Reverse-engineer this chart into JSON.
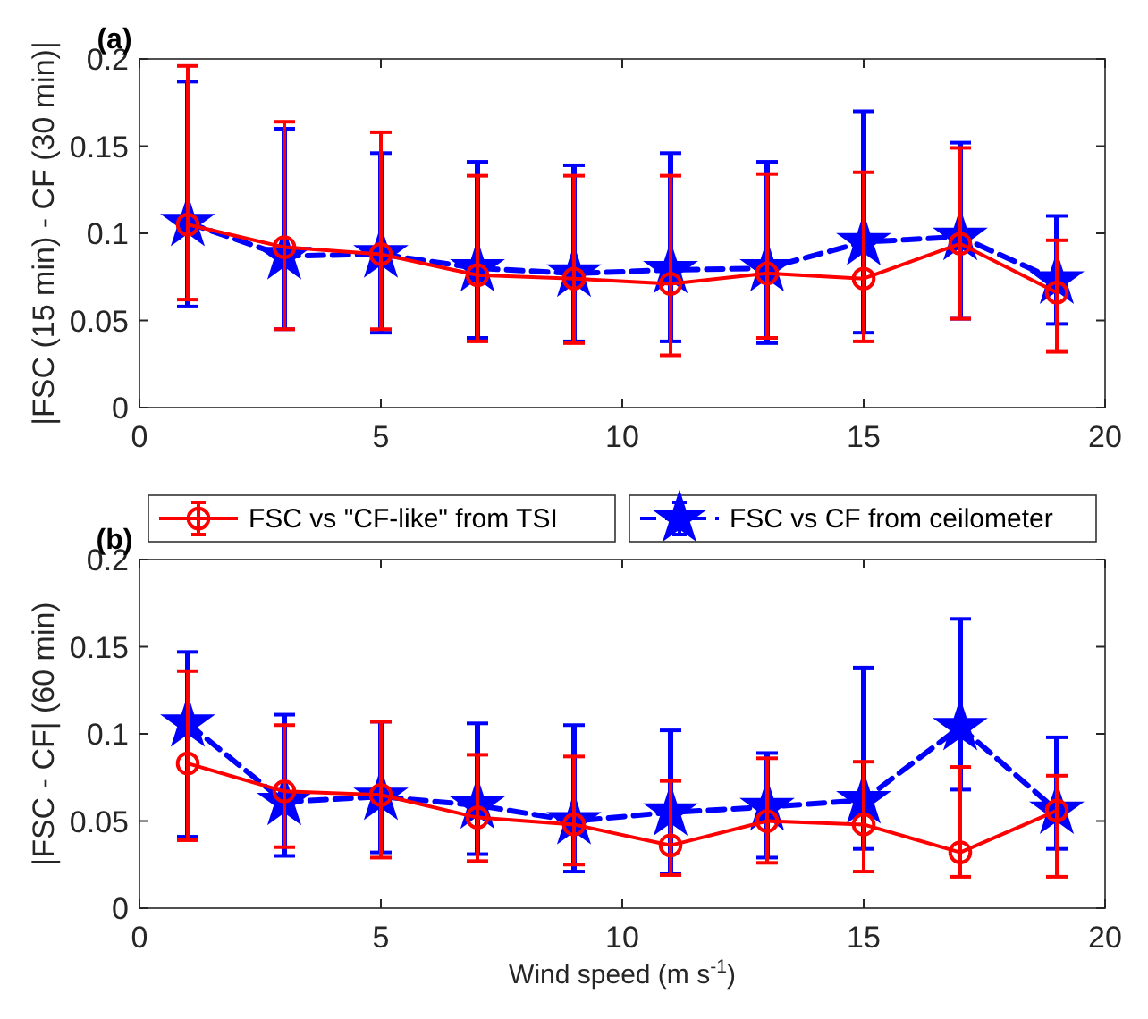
{
  "chart_data": [
    {
      "type": "line",
      "title": "(a)",
      "ylabel": "|FSC (15 min) - CF (30 min)|",
      "x": [
        1,
        3,
        5,
        7,
        9,
        11,
        13,
        15,
        17,
        19
      ],
      "xlim": [
        0,
        20
      ],
      "xticks": [
        0,
        5,
        10,
        15,
        20
      ],
      "ylim": [
        0,
        0.2
      ],
      "yticks": [
        0,
        0.05,
        0.1,
        0.15,
        0.2
      ],
      "grid": false,
      "legend": false,
      "series": [
        {
          "color": "#ff0000",
          "marker": "circle",
          "line_style": "solid",
          "values": [
            0.105,
            0.092,
            0.088,
            0.076,
            0.074,
            0.071,
            0.077,
            0.074,
            0.094,
            0.066
          ],
          "errors": [
            [
              0.062,
              0.196
            ],
            [
              0.045,
              0.164
            ],
            [
              0.045,
              0.158
            ],
            [
              0.038,
              0.133
            ],
            [
              0.037,
              0.133
            ],
            [
              0.03,
              0.133
            ],
            [
              0.04,
              0.134
            ],
            [
              0.038,
              0.135
            ],
            [
              0.051,
              0.149
            ],
            [
              0.032,
              0.096
            ]
          ]
        },
        {
          "color": "#0000ff",
          "marker": "star",
          "line_style": "dashed",
          "values": [
            0.106,
            0.087,
            0.088,
            0.08,
            0.077,
            0.079,
            0.08,
            0.095,
            0.098,
            0.073
          ],
          "errors": [
            [
              0.058,
              0.187
            ],
            [
              0.045,
              0.16
            ],
            [
              0.043,
              0.146
            ],
            [
              0.04,
              0.141
            ],
            [
              0.038,
              0.139
            ],
            [
              0.038,
              0.146
            ],
            [
              0.037,
              0.141
            ],
            [
              0.043,
              0.17
            ],
            [
              0.051,
              0.152
            ],
            [
              0.048,
              0.11
            ]
          ]
        }
      ]
    },
    {
      "type": "line",
      "title": "(b)",
      "xlabel": "Wind speed (m s$^{-1}$)",
      "ylabel": "|FSC - CF| (60 min)",
      "x": [
        1,
        3,
        5,
        7,
        9,
        11,
        13,
        15,
        17,
        19
      ],
      "xlim": [
        0,
        20
      ],
      "xticks": [
        0,
        5,
        10,
        15,
        20
      ],
      "ylim": [
        0,
        0.2
      ],
      "yticks": [
        0,
        0.05,
        0.1,
        0.15,
        0.2
      ],
      "grid": false,
      "legend": "top",
      "series": [
        {
          "name": "FSC vs \"CF-like\" from TSI",
          "color": "#ff0000",
          "marker": "circle",
          "line_style": "solid",
          "values": [
            0.083,
            0.067,
            0.065,
            0.052,
            0.048,
            0.036,
            0.05,
            0.048,
            0.032,
            0.056
          ],
          "errors": [
            [
              0.039,
              0.136
            ],
            [
              0.035,
              0.105
            ],
            [
              0.029,
              0.107
            ],
            [
              0.027,
              0.088
            ],
            [
              0.025,
              0.087
            ],
            [
              0.019,
              0.073
            ],
            [
              0.026,
              0.086
            ],
            [
              0.021,
              0.084
            ],
            [
              0.018,
              0.081
            ],
            [
              0.018,
              0.076
            ]
          ]
        },
        {
          "name": "FSC vs CF from ceilometer",
          "color": "#0000ff",
          "marker": "star",
          "line_style": "dashed",
          "values": [
            0.106,
            0.061,
            0.064,
            0.059,
            0.05,
            0.055,
            0.058,
            0.062,
            0.104,
            0.056
          ],
          "errors": [
            [
              0.041,
              0.147
            ],
            [
              0.03,
              0.111
            ],
            [
              0.032,
              0.107
            ],
            [
              0.031,
              0.106
            ],
            [
              0.021,
              0.105
            ],
            [
              0.02,
              0.102
            ],
            [
              0.029,
              0.089
            ],
            [
              0.034,
              0.138
            ],
            [
              0.068,
              0.166
            ],
            [
              0.034,
              0.098
            ]
          ]
        }
      ]
    }
  ]
}
